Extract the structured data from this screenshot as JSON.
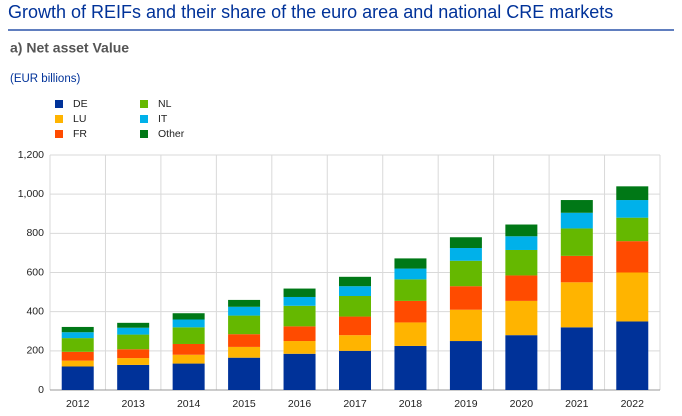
{
  "chart_data": {
    "type": "stacked_bar",
    "title": "Growth of REIFs and their share of the euro area and national CRE markets",
    "subtitle": "a) Net asset Value",
    "y_label": "(EUR billions)",
    "categories": [
      "2012",
      "2013",
      "2014",
      "2015",
      "2016",
      "2017",
      "2018",
      "2019",
      "2020",
      "2021",
      "2022"
    ],
    "series": [
      {
        "name": "DE",
        "color": "#003299",
        "values": [
          120,
          128,
          135,
          165,
          185,
          200,
          225,
          250,
          280,
          320,
          350
        ]
      },
      {
        "name": "LU",
        "color": "#ffb400",
        "values": [
          30,
          35,
          45,
          55,
          65,
          80,
          120,
          160,
          175,
          230,
          250
        ]
      },
      {
        "name": "FR",
        "color": "#ff4b00",
        "values": [
          45,
          45,
          55,
          65,
          75,
          95,
          110,
          120,
          130,
          135,
          160
        ]
      },
      {
        "name": "NL",
        "color": "#65b800",
        "values": [
          70,
          75,
          85,
          95,
          105,
          105,
          110,
          130,
          130,
          140,
          120
        ]
      },
      {
        "name": "IT",
        "color": "#00b1ea",
        "values": [
          30,
          35,
          40,
          45,
          45,
          50,
          55,
          65,
          70,
          80,
          90
        ]
      },
      {
        "name": "Other",
        "color": "#007816",
        "values": [
          27,
          25,
          32,
          35,
          43,
          48,
          52,
          55,
          60,
          65,
          70
        ]
      }
    ],
    "ylim": [
      0,
      1200
    ],
    "yticks": [
      0,
      200,
      400,
      600,
      800,
      {
        "value": 1000,
        "label": "1,000"
      },
      {
        "value": 1200,
        "label": "1,200"
      }
    ],
    "grid": true
  }
}
